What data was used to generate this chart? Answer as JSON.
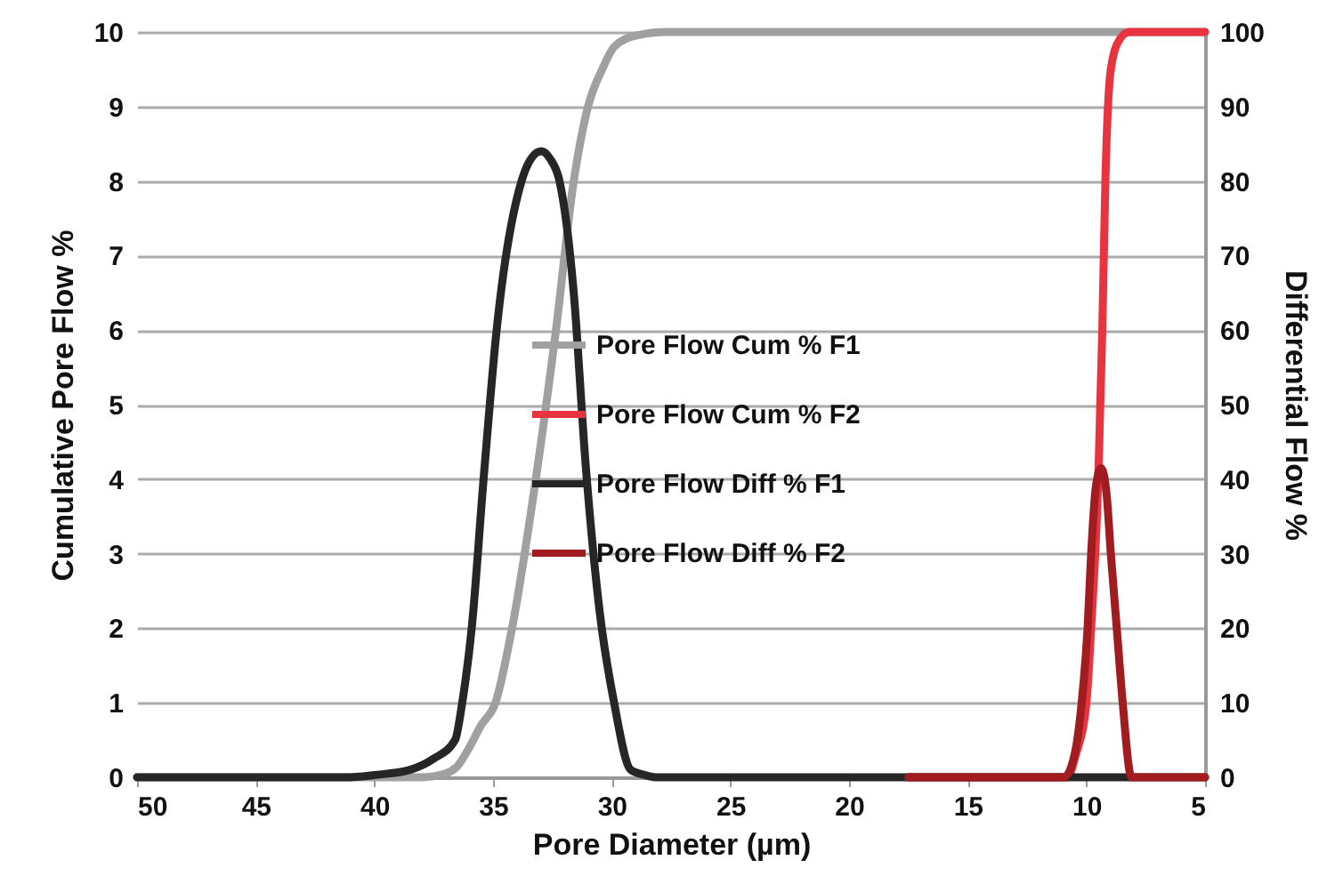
{
  "chart_data": {
    "type": "line",
    "xlabel": "Pore Diameter (µm)",
    "ylabel": "Cumulative Pore Flow %",
    "y2label": "Differential Flow %",
    "xlim": [
      50,
      5
    ],
    "xticks": [
      50,
      45,
      40,
      35,
      30,
      25,
      20,
      15,
      10,
      5
    ],
    "ylim": [
      0,
      10
    ],
    "yticks": [
      0,
      1,
      2,
      3,
      4,
      5,
      6,
      7,
      8,
      9,
      10
    ],
    "y2lim": [
      0,
      100
    ],
    "y2ticks": [
      0,
      10,
      20,
      30,
      40,
      50,
      60,
      70,
      80,
      90,
      100
    ],
    "grid": "y",
    "legend": "right",
    "series": [
      {
        "name": "Pore Flow Cum % F1",
        "color": "#a0a0a0",
        "axis": "y",
        "x": [
          50,
          38,
          37,
          36.5,
          36,
          35.5,
          34.9,
          34.2,
          33.2,
          32.35,
          31.6,
          31,
          30.4,
          29.9,
          29,
          27.7,
          25,
          5
        ],
        "values": [
          0,
          0,
          0.05,
          0.15,
          0.4,
          0.7,
          1,
          2,
          4,
          6,
          8,
          9,
          9.5,
          9.8,
          9.95,
          10,
          10,
          10
        ]
      },
      {
        "name": "Pore Flow Cum % F2",
        "color": "#e8343f",
        "axis": "y",
        "x": [
          17.5,
          10.8,
          10.45,
          10,
          9.8,
          9.5,
          9.33,
          9.2,
          8.97,
          8.6,
          8.2,
          5
        ],
        "values": [
          0,
          0,
          0.3,
          1,
          2,
          4,
          6,
          8,
          9.5,
          9.9,
          10,
          10
        ]
      },
      {
        "name": "Pore Flow Diff % F1",
        "color": "#262626",
        "axis": "y2",
        "x": [
          50,
          41.2,
          40,
          38.5,
          37.5,
          36.6,
          36.3,
          35.9,
          35.4,
          34.85,
          33.8,
          33.4,
          32.97,
          32.6,
          32.2,
          31.6,
          31.1,
          30.5,
          29.9,
          29.2,
          28.6,
          28.1,
          5
        ],
        "values": [
          0,
          0,
          0.3,
          1,
          2.5,
          5,
          10,
          20,
          40,
          60,
          80,
          83,
          84,
          83,
          80,
          65,
          42,
          22,
          10,
          1,
          0.3,
          0,
          0
        ]
      },
      {
        "name": "Pore Flow Diff % F2",
        "color": "#a01c1f",
        "axis": "y2",
        "x": [
          17.5,
          10.94,
          10.5,
          10.2,
          9.95,
          9.8,
          9.6,
          9.38,
          9.15,
          8.97,
          8.72,
          8.47,
          8.1,
          5
        ],
        "values": [
          0,
          0,
          3,
          10,
          20,
          30,
          39,
          41.5,
          38,
          30,
          20,
          10,
          0,
          0
        ]
      }
    ]
  }
}
